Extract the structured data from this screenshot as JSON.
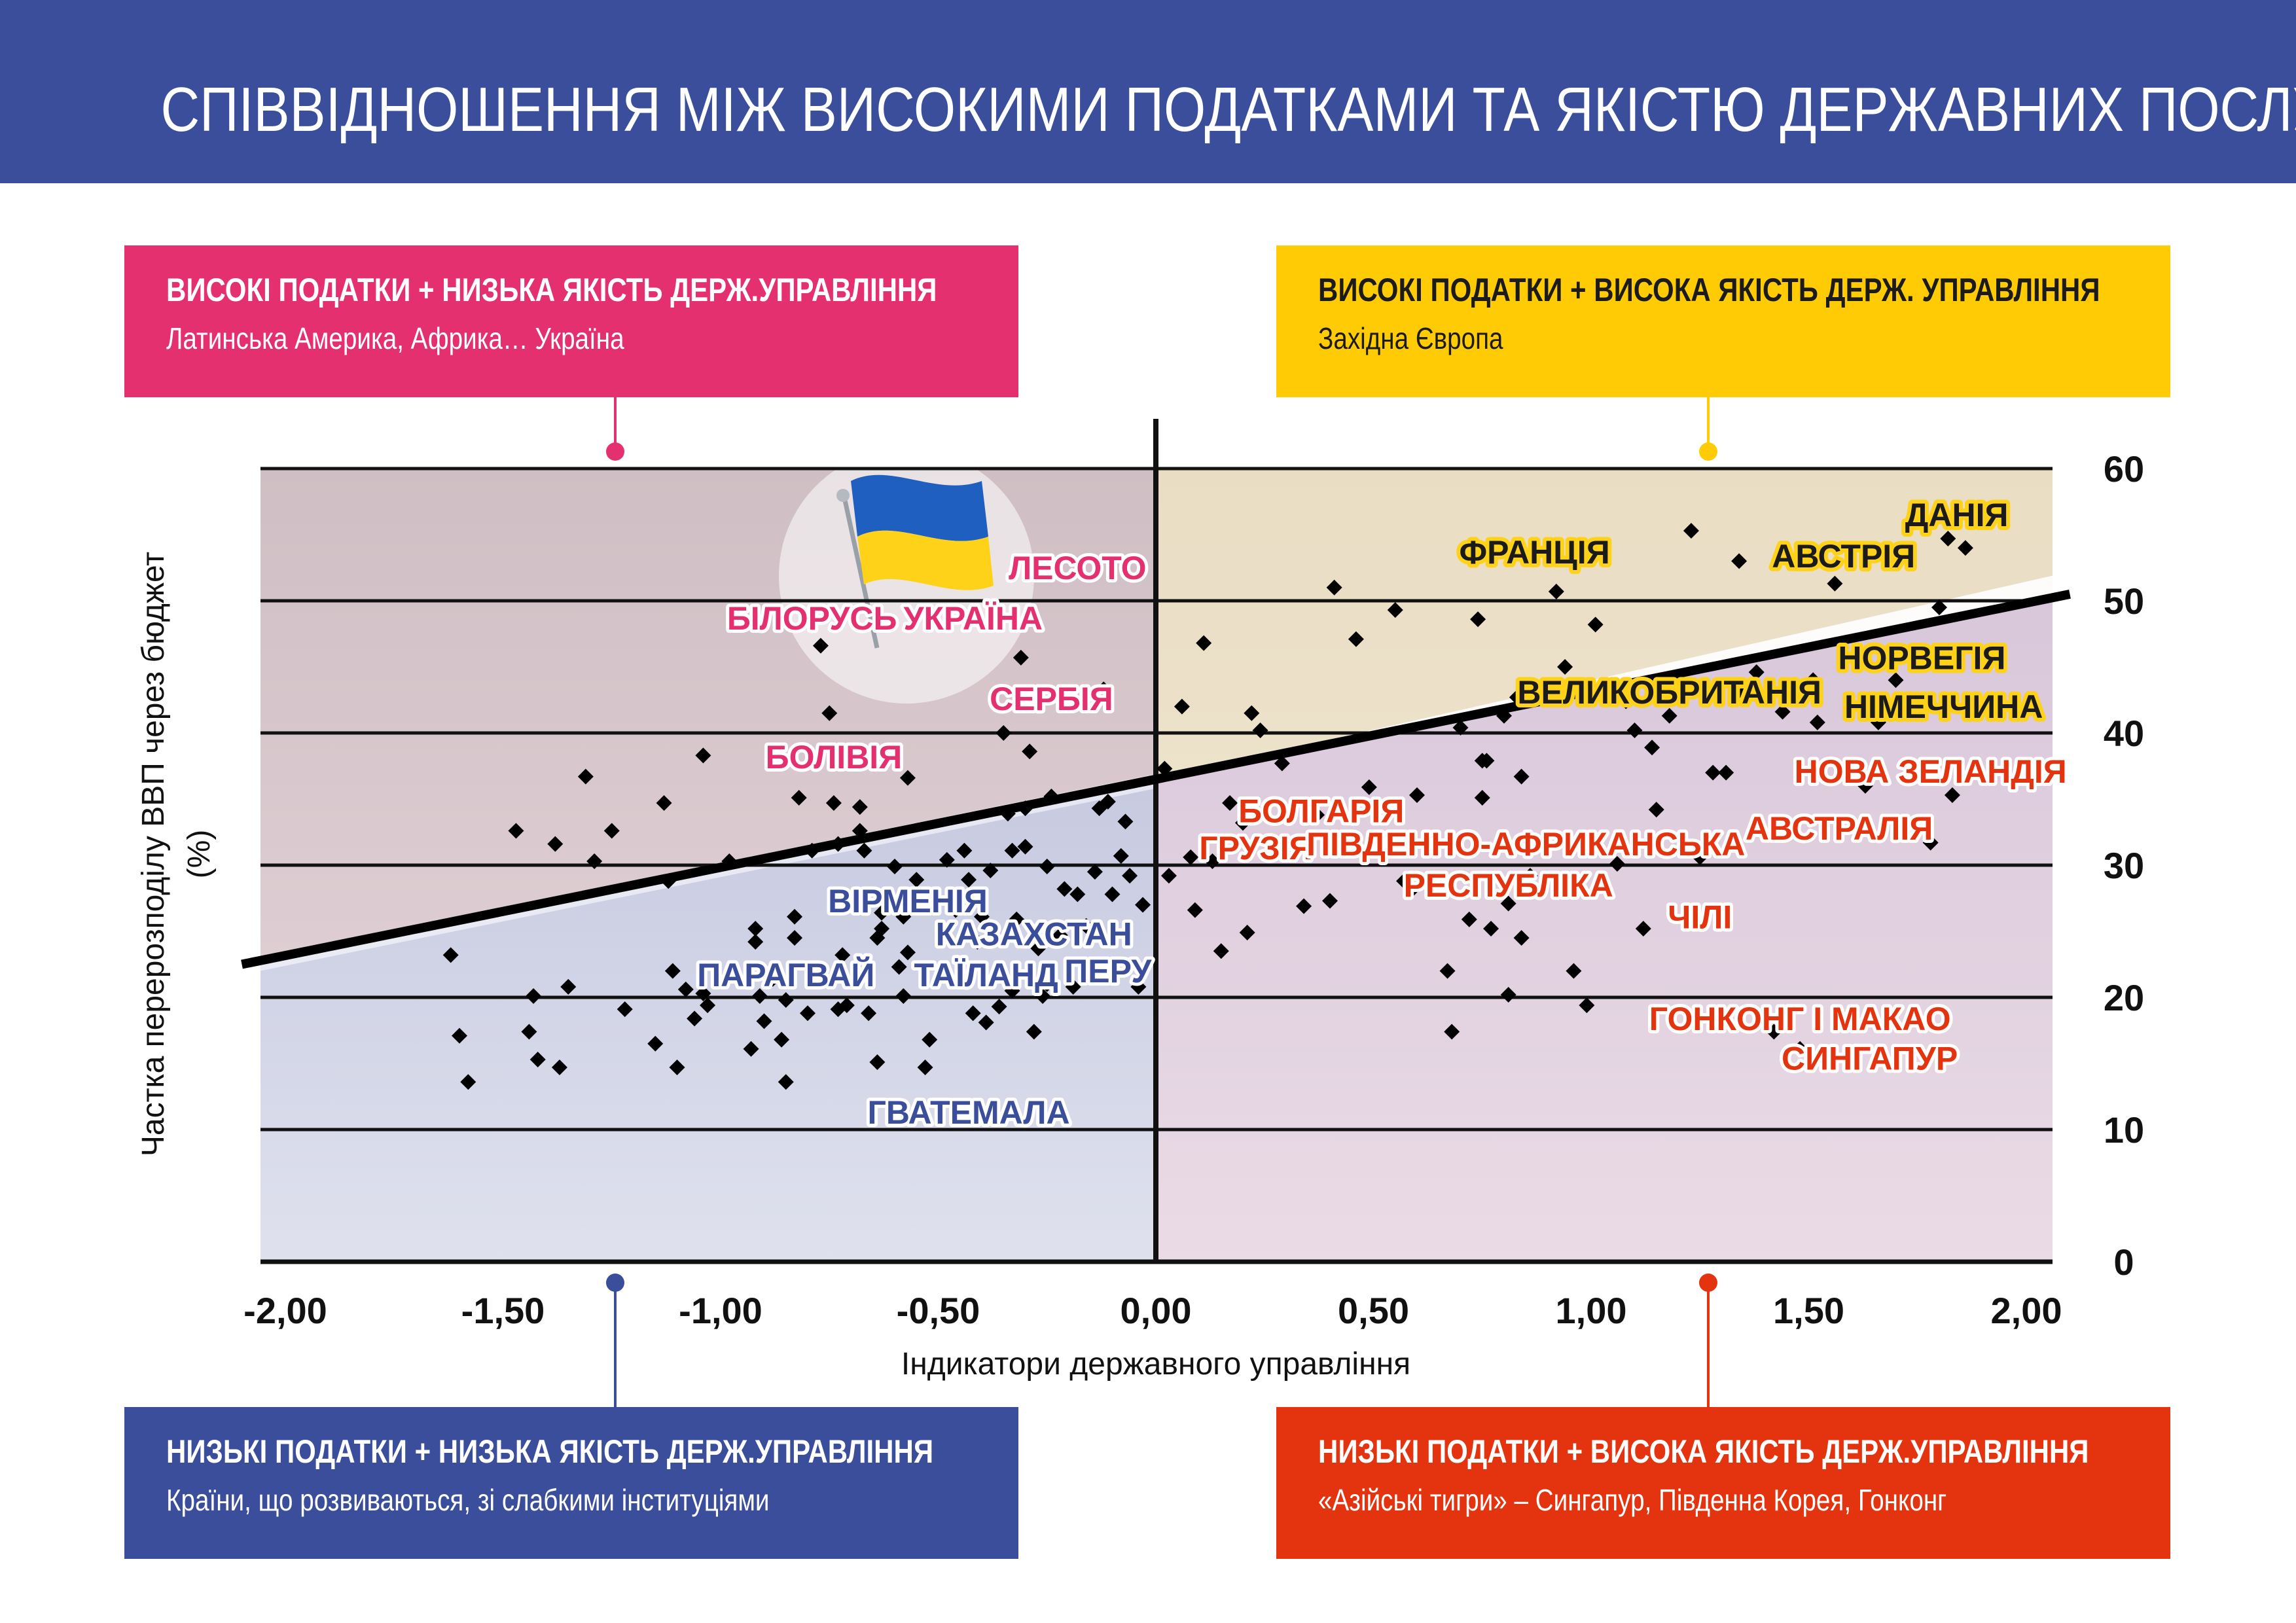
{
  "title": "СПІВВІДНОШЕННЯ МІЖ ВИСОКИМИ ПОДАТКАМИ ТА ЯКІСТЮ ДЕРЖАВНИХ ПОСЛУГ",
  "quadrants": {
    "top_left": {
      "heading": "ВИСОКІ ПОДАТКИ + НИЗЬКА ЯКІСТЬ ДЕРЖ.УПРАВЛІННЯ",
      "text": "Латинська Америка, Африка… Україна",
      "color": "#e5306f"
    },
    "top_right": {
      "heading": "ВИСОКІ ПОДАТКИ + ВИСОКА ЯКІСТЬ ДЕРЖ. УПРАВЛІННЯ",
      "text": "Західна Європа",
      "color": "#ffcb05"
    },
    "bottom_left": {
      "heading": "НИЗЬКІ ПОДАТКИ + НИЗЬКА ЯКІСТЬ ДЕРЖ.УПРАВЛІННЯ",
      "text": "Країни, що розвиваються, зі слабкими інституціями",
      "color": "#3a4e9b"
    },
    "bottom_right": {
      "heading": "НИЗЬКІ ПОДАТКИ + ВИСОКА ЯКІСТЬ ДЕРЖ.УПРАВЛІННЯ",
      "text": "«Азійські тигри» – Сингапур, Південна Корея, Гонконг",
      "color": "#e3330f"
    }
  },
  "chart_data": {
    "type": "scatter",
    "xlabel": "Індикатори державного управління",
    "ylabel": "Частка перерозподілу ВВП через бюджет (%)",
    "xlim": [
      -2.0,
      2.0
    ],
    "ylim": [
      0,
      60
    ],
    "x_ticks": [
      "-2,00",
      "-1,50",
      "-1,00",
      "-0,50",
      "0,00",
      "0,50",
      "1,00",
      "1,50",
      "2,00"
    ],
    "y_ticks": [
      "0",
      "10",
      "20",
      "30",
      "40",
      "50",
      "60"
    ],
    "grid": "horizontal",
    "trend_line": {
      "x": [
        -2.1,
        2.1
      ],
      "y": [
        22.5,
        50.5
      ]
    },
    "labels": [
      {
        "text": "ЛЕСОТО",
        "x": -0.18,
        "y": 52.5,
        "color": "#e5306f"
      },
      {
        "text": "БІЛОРУСЬ",
        "x": -0.79,
        "y": 48.7,
        "color": "#e5306f"
      },
      {
        "text": "УКРАЇНА",
        "x": -0.42,
        "y": 48.9,
        "color": "#e5306f"
      },
      {
        "text": "СЕРБІЯ",
        "x": -0.24,
        "y": 42.6,
        "color": "#e5306f"
      },
      {
        "text": "БОЛІВІЯ",
        "x": -0.74,
        "y": 38.2,
        "color": "#e5306f"
      },
      {
        "text": "ФРАНЦІЯ",
        "x": 0.87,
        "y": 53.7,
        "color": "#1b1b1b"
      },
      {
        "text": "АВСТРІЯ",
        "x": 1.58,
        "y": 53.4,
        "color": "#1b1b1b"
      },
      {
        "text": "ДАНІЯ",
        "x": 1.84,
        "y": 56.5,
        "color": "#1b1b1b"
      },
      {
        "text": "НОРВЕГІЯ",
        "x": 1.76,
        "y": 45.7,
        "color": "#1b1b1b"
      },
      {
        "text": "ВЕЛИКОБРИТАНІЯ",
        "x": 1.18,
        "y": 43.1,
        "color": "#1b1b1b"
      },
      {
        "text": "НІМЕЧЧИНА",
        "x": 1.81,
        "y": 42.0,
        "color": "#1b1b1b"
      },
      {
        "text": "НОВА ЗЕЛАНДІЯ",
        "x": 1.78,
        "y": 37.1,
        "color": "#e3330f"
      },
      {
        "text": "БОЛГАРІЯ",
        "x": 0.38,
        "y": 34.1,
        "color": "#e3330f"
      },
      {
        "text": "АВСТРАЛІЯ",
        "x": 1.57,
        "y": 32.8,
        "color": "#e3330f"
      },
      {
        "text": "ГРУЗІЯ",
        "x": 0.23,
        "y": 31.3,
        "color": "#e3330f"
      },
      {
        "text": "ПІВДЕННО-АФРИКАНСЬКА",
        "x": 0.85,
        "y": 31.6,
        "color": "#e3330f"
      },
      {
        "text": "РЕСПУБЛІКА",
        "x": 0.81,
        "y": 28.5,
        "color": "#e3330f"
      },
      {
        "text": "ЧІЛІ",
        "x": 1.25,
        "y": 26.1,
        "color": "#e3330f"
      },
      {
        "text": "ГОНКОНГ І МАКАО",
        "x": 1.48,
        "y": 18.4,
        "color": "#e3330f"
      },
      {
        "text": "СИНГАПУР",
        "x": 1.64,
        "y": 15.4,
        "color": "#e3330f"
      },
      {
        "text": "ВІРМЕНІЯ",
        "x": -0.57,
        "y": 27.3,
        "color": "#3a4e9b"
      },
      {
        "text": "КАЗАХСТАН",
        "x": -0.28,
        "y": 24.8,
        "color": "#3a4e9b"
      },
      {
        "text": "ПАРАГВАЙ",
        "x": -0.85,
        "y": 21.7,
        "color": "#3a4e9b"
      },
      {
        "text": "ТАЇЛАНД",
        "x": -0.39,
        "y": 21.7,
        "color": "#3a4e9b"
      },
      {
        "text": "ПЕРУ",
        "x": -0.11,
        "y": 22.0,
        "color": "#3a4e9b"
      },
      {
        "text": "ГВАТЕМАЛА",
        "x": -0.43,
        "y": 11.3,
        "color": "#3a4e9b"
      }
    ],
    "points": [
      [
        -1.62,
        23.2
      ],
      [
        -1.6,
        17.1
      ],
      [
        -1.58,
        13.6
      ],
      [
        -1.47,
        32.6
      ],
      [
        -1.43,
        20.1
      ],
      [
        -1.44,
        17.4
      ],
      [
        -1.42,
        15.3
      ],
      [
        -1.38,
        31.6
      ],
      [
        -1.37,
        14.7
      ],
      [
        -1.35,
        20.8
      ],
      [
        -1.31,
        36.7
      ],
      [
        -1.29,
        30.3
      ],
      [
        -1.25,
        32.6
      ],
      [
        -1.22,
        19.1
      ],
      [
        -1.15,
        16.5
      ],
      [
        -1.13,
        34.7
      ],
      [
        -1.12,
        28.8
      ],
      [
        -1.11,
        22.0
      ],
      [
        -1.1,
        14.7
      ],
      [
        -1.08,
        20.6
      ],
      [
        -1.06,
        18.4
      ],
      [
        -1.04,
        38.3
      ],
      [
        -1.04,
        20.3
      ],
      [
        -1.03,
        19.4
      ],
      [
        -0.98,
        30.3
      ],
      [
        -0.93,
        16.1
      ],
      [
        -0.92,
        25.2
      ],
      [
        -0.92,
        24.2
      ],
      [
        -0.91,
        20.1
      ],
      [
        -0.9,
        18.2
      ],
      [
        -0.88,
        21.4
      ],
      [
        -0.86,
        16.8
      ],
      [
        -0.85,
        19.8
      ],
      [
        -0.85,
        13.6
      ],
      [
        -0.83,
        26.1
      ],
      [
        -0.83,
        24.5
      ],
      [
        -0.82,
        35.1
      ],
      [
        -0.8,
        18.8
      ],
      [
        -0.79,
        31.1
      ],
      [
        -0.77,
        46.6
      ],
      [
        -0.75,
        41.5
      ],
      [
        -0.74,
        34.7
      ],
      [
        -0.73,
        31.6
      ],
      [
        -0.73,
        19.1
      ],
      [
        -0.72,
        23.2
      ],
      [
        -0.71,
        19.4
      ],
      [
        -0.68,
        32.6
      ],
      [
        -0.68,
        34.4
      ],
      [
        -0.67,
        31.1
      ],
      [
        -0.66,
        18.8
      ],
      [
        -0.64,
        15.1
      ],
      [
        -0.64,
        24.5
      ],
      [
        -0.63,
        26.4
      ],
      [
        -0.63,
        25.2
      ],
      [
        -0.6,
        29.9
      ],
      [
        -0.59,
        22.3
      ],
      [
        -0.58,
        20.1
      ],
      [
        -0.58,
        26.1
      ],
      [
        -0.57,
        36.6
      ],
      [
        -0.57,
        23.4
      ],
      [
        -0.55,
        28.9
      ],
      [
        -0.53,
        14.7
      ],
      [
        -0.52,
        16.8
      ],
      [
        -0.48,
        30.4
      ],
      [
        -0.46,
        26.6
      ],
      [
        -0.44,
        31.1
      ],
      [
        -0.43,
        28.9
      ],
      [
        -0.42,
        18.8
      ],
      [
        -0.41,
        24.2
      ],
      [
        -0.4,
        26.1
      ],
      [
        -0.39,
        18.1
      ],
      [
        -0.38,
        29.6
      ],
      [
        -0.36,
        19.3
      ],
      [
        -0.35,
        40.0
      ],
      [
        -0.34,
        33.9
      ],
      [
        -0.33,
        31.1
      ],
      [
        -0.33,
        20.5
      ],
      [
        -0.32,
        25.9
      ],
      [
        -0.31,
        45.7
      ],
      [
        -0.3,
        34.3
      ],
      [
        -0.3,
        31.4
      ],
      [
        -0.29,
        38.6
      ],
      [
        -0.28,
        17.4
      ],
      [
        -0.27,
        23.7
      ],
      [
        -0.26,
        20.1
      ],
      [
        -0.25,
        21.0
      ],
      [
        -0.25,
        29.9
      ],
      [
        -0.24,
        35.2
      ],
      [
        -0.22,
        24.7
      ],
      [
        -0.21,
        28.2
      ],
      [
        -0.19,
        20.8
      ],
      [
        -0.18,
        27.8
      ],
      [
        -0.16,
        25.4
      ],
      [
        -0.14,
        29.5
      ],
      [
        -0.13,
        34.3
      ],
      [
        -0.12,
        43.3
      ],
      [
        -0.11,
        34.8
      ],
      [
        -0.1,
        27.8
      ],
      [
        -0.08,
        30.7
      ],
      [
        -0.07,
        33.3
      ],
      [
        -0.06,
        29.2
      ],
      [
        -0.04,
        20.8
      ],
      [
        -0.03,
        27.0
      ],
      [
        0.02,
        37.3
      ],
      [
        0.03,
        29.2
      ],
      [
        0.06,
        42.0
      ],
      [
        0.08,
        30.6
      ],
      [
        0.09,
        26.6
      ],
      [
        0.11,
        46.8
      ],
      [
        0.13,
        30.3
      ],
      [
        0.15,
        23.5
      ],
      [
        0.17,
        34.7
      ],
      [
        0.2,
        33.2
      ],
      [
        0.21,
        24.9
      ],
      [
        0.22,
        41.5
      ],
      [
        0.24,
        40.2
      ],
      [
        0.29,
        37.7
      ],
      [
        0.34,
        26.9
      ],
      [
        0.37,
        33.8
      ],
      [
        0.4,
        27.3
      ],
      [
        0.41,
        51.0
      ],
      [
        0.46,
        47.1
      ],
      [
        0.49,
        35.9
      ],
      [
        0.55,
        49.3
      ],
      [
        0.57,
        28.8
      ],
      [
        0.59,
        28.2
      ],
      [
        0.6,
        35.3
      ],
      [
        0.67,
        22.0
      ],
      [
        0.68,
        17.4
      ],
      [
        0.7,
        40.4
      ],
      [
        0.72,
        25.9
      ],
      [
        0.74,
        48.6
      ],
      [
        0.75,
        37.9
      ],
      [
        0.75,
        35.1
      ],
      [
        0.76,
        37.9
      ],
      [
        0.77,
        25.2
      ],
      [
        0.8,
        41.3
      ],
      [
        0.81,
        27.1
      ],
      [
        0.81,
        20.2
      ],
      [
        0.83,
        42.7
      ],
      [
        0.84,
        36.7
      ],
      [
        0.84,
        24.5
      ],
      [
        0.86,
        29.2
      ],
      [
        0.92,
        50.7
      ],
      [
        0.94,
        45.0
      ],
      [
        0.96,
        22.0
      ],
      [
        0.99,
        19.4
      ],
      [
        1.01,
        48.2
      ],
      [
        1.06,
        30.1
      ],
      [
        1.08,
        42.4
      ],
      [
        1.1,
        40.2
      ],
      [
        1.12,
        25.2
      ],
      [
        1.14,
        38.9
      ],
      [
        1.15,
        34.2
      ],
      [
        1.18,
        41.3
      ],
      [
        1.23,
        55.3
      ],
      [
        1.25,
        30.6
      ],
      [
        1.28,
        37.0
      ],
      [
        1.31,
        37.0
      ],
      [
        1.34,
        53.0
      ],
      [
        1.35,
        43.0
      ],
      [
        1.38,
        44.6
      ],
      [
        1.42,
        17.4
      ],
      [
        1.44,
        41.6
      ],
      [
        1.48,
        16.1
      ],
      [
        1.51,
        44.0
      ],
      [
        1.52,
        40.8
      ],
      [
        1.56,
        51.3
      ],
      [
        1.59,
        37.3
      ],
      [
        1.63,
        36.0
      ],
      [
        1.66,
        40.8
      ],
      [
        1.7,
        44.0
      ],
      [
        1.73,
        41.9
      ],
      [
        1.78,
        31.7
      ],
      [
        1.8,
        49.5
      ],
      [
        1.82,
        54.7
      ],
      [
        1.83,
        35.3
      ],
      [
        1.86,
        54.0
      ]
    ]
  }
}
